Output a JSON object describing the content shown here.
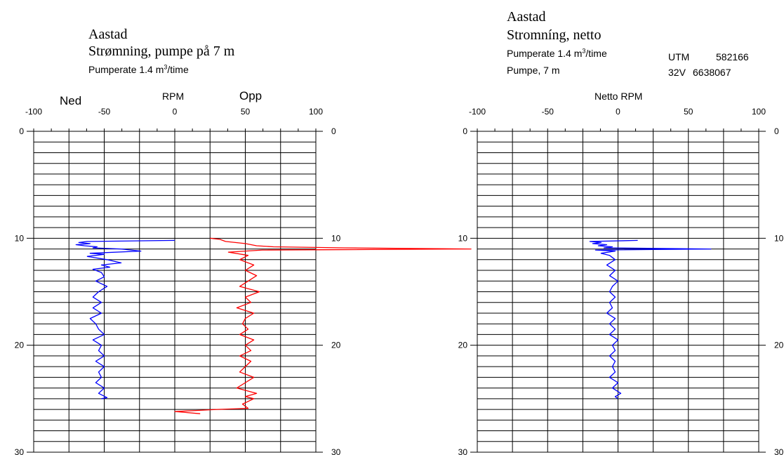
{
  "left_header": {
    "title": "Aastad",
    "subtitle": "Strømning, pumpe på 7 m",
    "rate_prefix": "Pumperate 1.4 m",
    "rate_sup": "3",
    "rate_suffix": "/time"
  },
  "right_header": {
    "title": "Aastad",
    "subtitle": "Stromníng, netto",
    "rate_prefix": "Pumperate 1.4 m",
    "rate_sup": "3",
    "rate_suffix": "/time",
    "pump": "Pumpe,  7 m",
    "utm_label": "UTM",
    "utm_east": "582166",
    "zone": "32V",
    "utm_north": "6638067"
  },
  "colors": {
    "down": "#0000ff",
    "up": "#ff0000",
    "net": "#0000ff",
    "grid": "#000000"
  },
  "chart_data": [
    {
      "type": "line",
      "title": "RPM",
      "label_left": "Ned",
      "label_right": "Opp",
      "xlim": [
        -100,
        100
      ],
      "ylim": [
        0,
        30
      ],
      "y_inverted": true,
      "x_ticks": [
        -100,
        -50,
        0,
        50,
        100
      ],
      "x_tick_labels": [
        "-100",
        "-50",
        "0",
        "50",
        "100"
      ],
      "y_ticks": [
        0,
        10,
        20,
        30
      ],
      "y_tick_labels": [
        "0",
        "10",
        "20",
        "30"
      ],
      "grid": true,
      "series": [
        {
          "key": "down",
          "depth": [
            10.2,
            10.3,
            10.4,
            10.5,
            10.6,
            10.7,
            10.8,
            10.9,
            11.0,
            11.2,
            11.4,
            11.5,
            11.7,
            12.0,
            12.3,
            12.5,
            12.7,
            12.9,
            13.2,
            13.6,
            14.0,
            14.5,
            15.0,
            15.5,
            16.0,
            16.5,
            17.0,
            17.5,
            18.0,
            18.5,
            19.0,
            19.5,
            20.0,
            20.5,
            21.0,
            21.5,
            22.0,
            22.5,
            23.0,
            23.5,
            24.0,
            24.5,
            24.9,
            25.0
          ],
          "rpm": [
            0,
            -62,
            -68,
            -60,
            -70,
            -64,
            -55,
            -58,
            -38,
            -24,
            -60,
            -50,
            -62,
            -48,
            -38,
            -52,
            -46,
            -58,
            -52,
            -50,
            -56,
            -48,
            -54,
            -58,
            -52,
            -58,
            -52,
            -60,
            -56,
            -54,
            -50,
            -58,
            -52,
            -54,
            -50,
            -56,
            -50,
            -54,
            -52,
            -56,
            -50,
            -54,
            -48,
            -52
          ]
        },
        {
          "key": "up",
          "depth": [
            10.0,
            10.1,
            10.3,
            10.5,
            10.7,
            10.8,
            10.9,
            11.0,
            11.1,
            11.3,
            11.6,
            12.0,
            12.5,
            13.0,
            13.5,
            14.0,
            14.5,
            15.0,
            15.5,
            16.0,
            16.5,
            17.0,
            17.5,
            18.0,
            18.5,
            19.0,
            19.5,
            20.0,
            20.5,
            21.0,
            21.5,
            22.0,
            22.5,
            23.0,
            23.5,
            24.0,
            24.5,
            24.8,
            25.0,
            25.5,
            25.9,
            26.0,
            26.1,
            26.2,
            26.4
          ],
          "rpm": [
            25,
            32,
            36,
            50,
            58,
            70,
            120,
            210,
            62,
            38,
            52,
            46,
            56,
            50,
            58,
            52,
            46,
            60,
            50,
            54,
            44,
            56,
            50,
            48,
            52,
            46,
            56,
            50,
            54,
            46,
            54,
            50,
            46,
            56,
            50,
            44,
            58,
            50,
            56,
            48,
            52,
            30,
            15,
            0,
            18
          ]
        }
      ]
    },
    {
      "type": "line",
      "title": "Netto RPM",
      "xlim": [
        -100,
        100
      ],
      "ylim": [
        0,
        30
      ],
      "y_inverted": true,
      "x_ticks": [
        -100,
        -50,
        0,
        50,
        100
      ],
      "x_tick_labels": [
        "-100",
        "-50",
        "0",
        "50",
        "100"
      ],
      "y_ticks": [
        0,
        10,
        20,
        30
      ],
      "y_tick_labels": [
        "0",
        "10",
        "20",
        "30"
      ],
      "grid": true,
      "series": [
        {
          "key": "net",
          "depth": [
            10.2,
            10.3,
            10.4,
            10.5,
            10.6,
            10.7,
            10.8,
            10.9,
            11.0,
            11.1,
            11.2,
            11.4,
            11.6,
            12.0,
            12.5,
            13.0,
            13.5,
            14.0,
            14.5,
            15.0,
            15.5,
            16.0,
            16.5,
            17.0,
            17.5,
            18.0,
            18.5,
            19.0,
            19.5,
            20.0,
            20.5,
            21.0,
            21.5,
            22.0,
            22.5,
            23.0,
            23.5,
            24.0,
            24.5,
            24.8,
            25.0
          ],
          "rpm": [
            14,
            -20,
            -12,
            -18,
            -8,
            -14,
            -4,
            -10,
            66,
            -16,
            -2,
            -12,
            -6,
            -2,
            -8,
            -2,
            -6,
            0,
            -4,
            -6,
            -2,
            -6,
            -4,
            -8,
            -2,
            -6,
            -2,
            -6,
            0,
            -4,
            -2,
            -6,
            -2,
            -4,
            -2,
            -6,
            0,
            -4,
            2,
            -2,
            0
          ]
        }
      ]
    }
  ]
}
